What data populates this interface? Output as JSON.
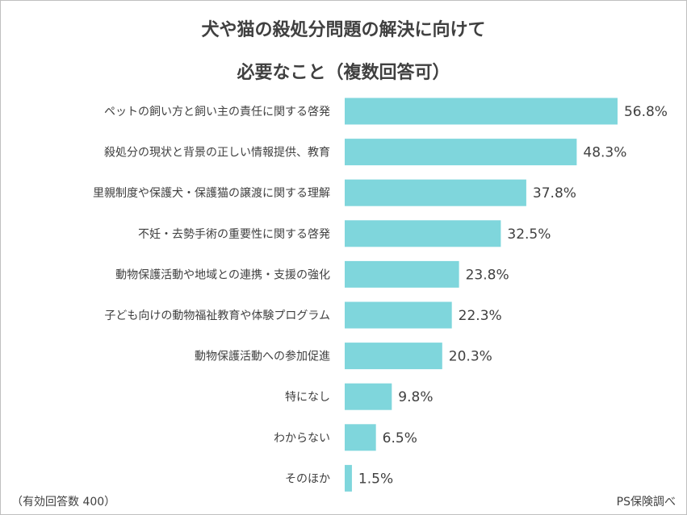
{
  "chart_data": {
    "type": "bar",
    "orientation": "horizontal",
    "title_lines": [
      "犬や猫の殺処分問題の解決に向けて",
      "必要なこと（複数回答可）"
    ],
    "categories": [
      "ペットの飼い方と飼い主の責任に関する啓発",
      "殺処分の現状と背景の正しい情報提供、教育",
      "里親制度や保護犬・保護猫の譲渡に関する理解",
      "不妊・去勢手術の重要性に関する啓発",
      "動物保護活動や地域との連携・支援の強化",
      "子ども向けの動物福祉教育や体験プログラム",
      "動物保護活動への参加促進",
      "特になし",
      "わからない",
      "そのほか"
    ],
    "values": [
      56.8,
      48.3,
      37.8,
      32.5,
      23.8,
      22.3,
      20.3,
      9.8,
      6.5,
      1.5
    ],
    "value_labels": [
      "56.8%",
      "48.3%",
      "37.8%",
      "32.5%",
      "23.8%",
      "22.3%",
      "20.3%",
      "9.8%",
      "6.5%",
      "1.5%"
    ],
    "unit": "%",
    "xlim": [
      0,
      60
    ],
    "grid": false,
    "legend": "none",
    "bar_color": "#7fd6dc"
  },
  "footer": {
    "sample_note": "（有効回答数 400）",
    "source": "PS保険調べ"
  }
}
